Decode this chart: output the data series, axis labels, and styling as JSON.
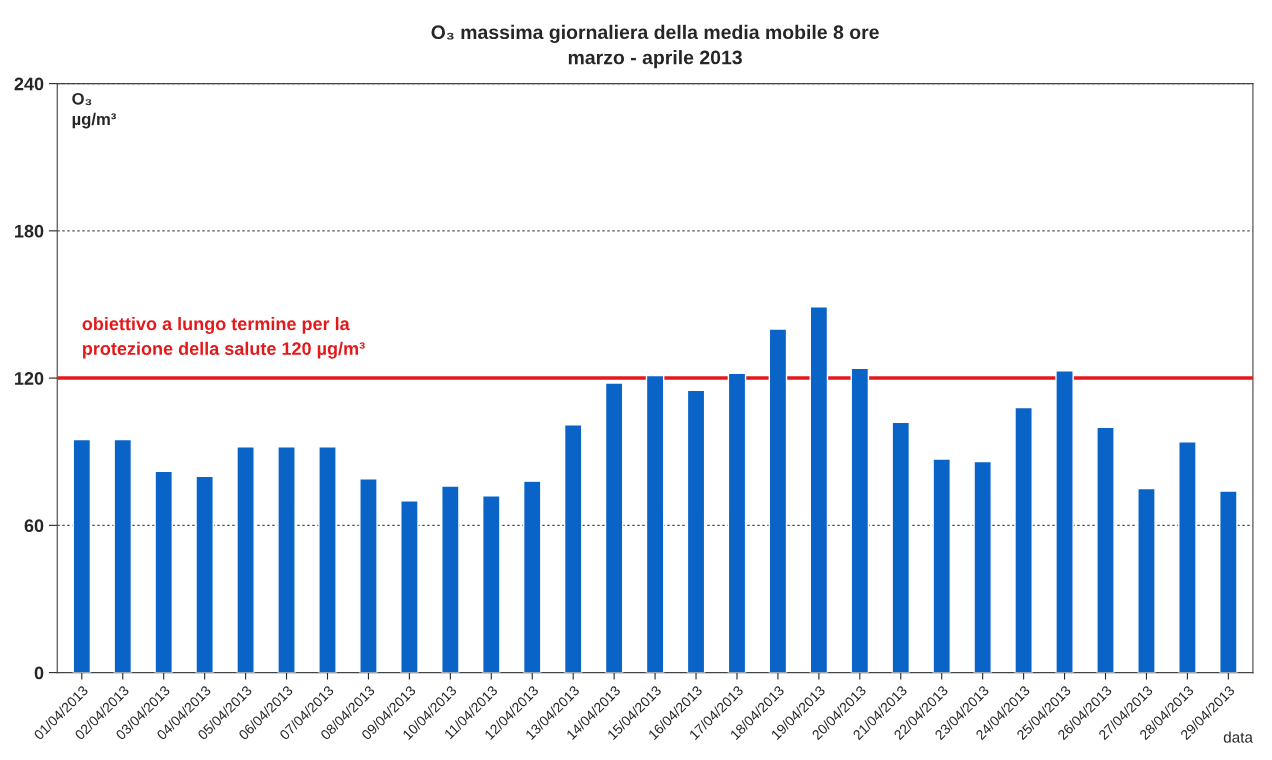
{
  "chart_data": {
    "type": "bar",
    "title": "O₃ massima giornaliera della media mobile 8 ore\nmarzo - aprile 2013",
    "xlabel": "data",
    "ylabel": "O₃\nµg/m³",
    "categories": [
      "01/04/2013",
      "02/04/2013",
      "03/04/2013",
      "04/04/2013",
      "05/04/2013",
      "06/04/2013",
      "07/04/2013",
      "08/04/2013",
      "09/04/2013",
      "10/04/2013",
      "11/04/2013",
      "12/04/2013",
      "13/04/2013",
      "14/04/2013",
      "15/04/2013",
      "16/04/2013",
      "17/04/2013",
      "18/04/2013",
      "19/04/2013",
      "20/04/2013",
      "21/04/2013",
      "22/04/2013",
      "23/04/2013",
      "24/04/2013",
      "25/04/2013",
      "26/04/2013",
      "27/04/2013",
      "28/04/2013",
      "29/04/2013"
    ],
    "values": [
      95,
      95,
      82,
      80,
      92,
      92,
      92,
      79,
      70,
      76,
      72,
      78,
      101,
      118,
      121,
      115,
      122,
      140,
      149,
      124,
      102,
      87,
      86,
      108,
      123,
      100,
      75,
      94,
      74
    ],
    "color": "#0a64c8",
    "ylim": [
      0,
      240
    ],
    "yticks": [
      0,
      60,
      120,
      180,
      240
    ],
    "grid": "y",
    "ref_lines": [
      {
        "axis": "y",
        "value": 120,
        "label": "obiettivo a lungo termine per la\nprotezione della salute 120 µg/m³",
        "color": "#e31a1c"
      }
    ]
  }
}
